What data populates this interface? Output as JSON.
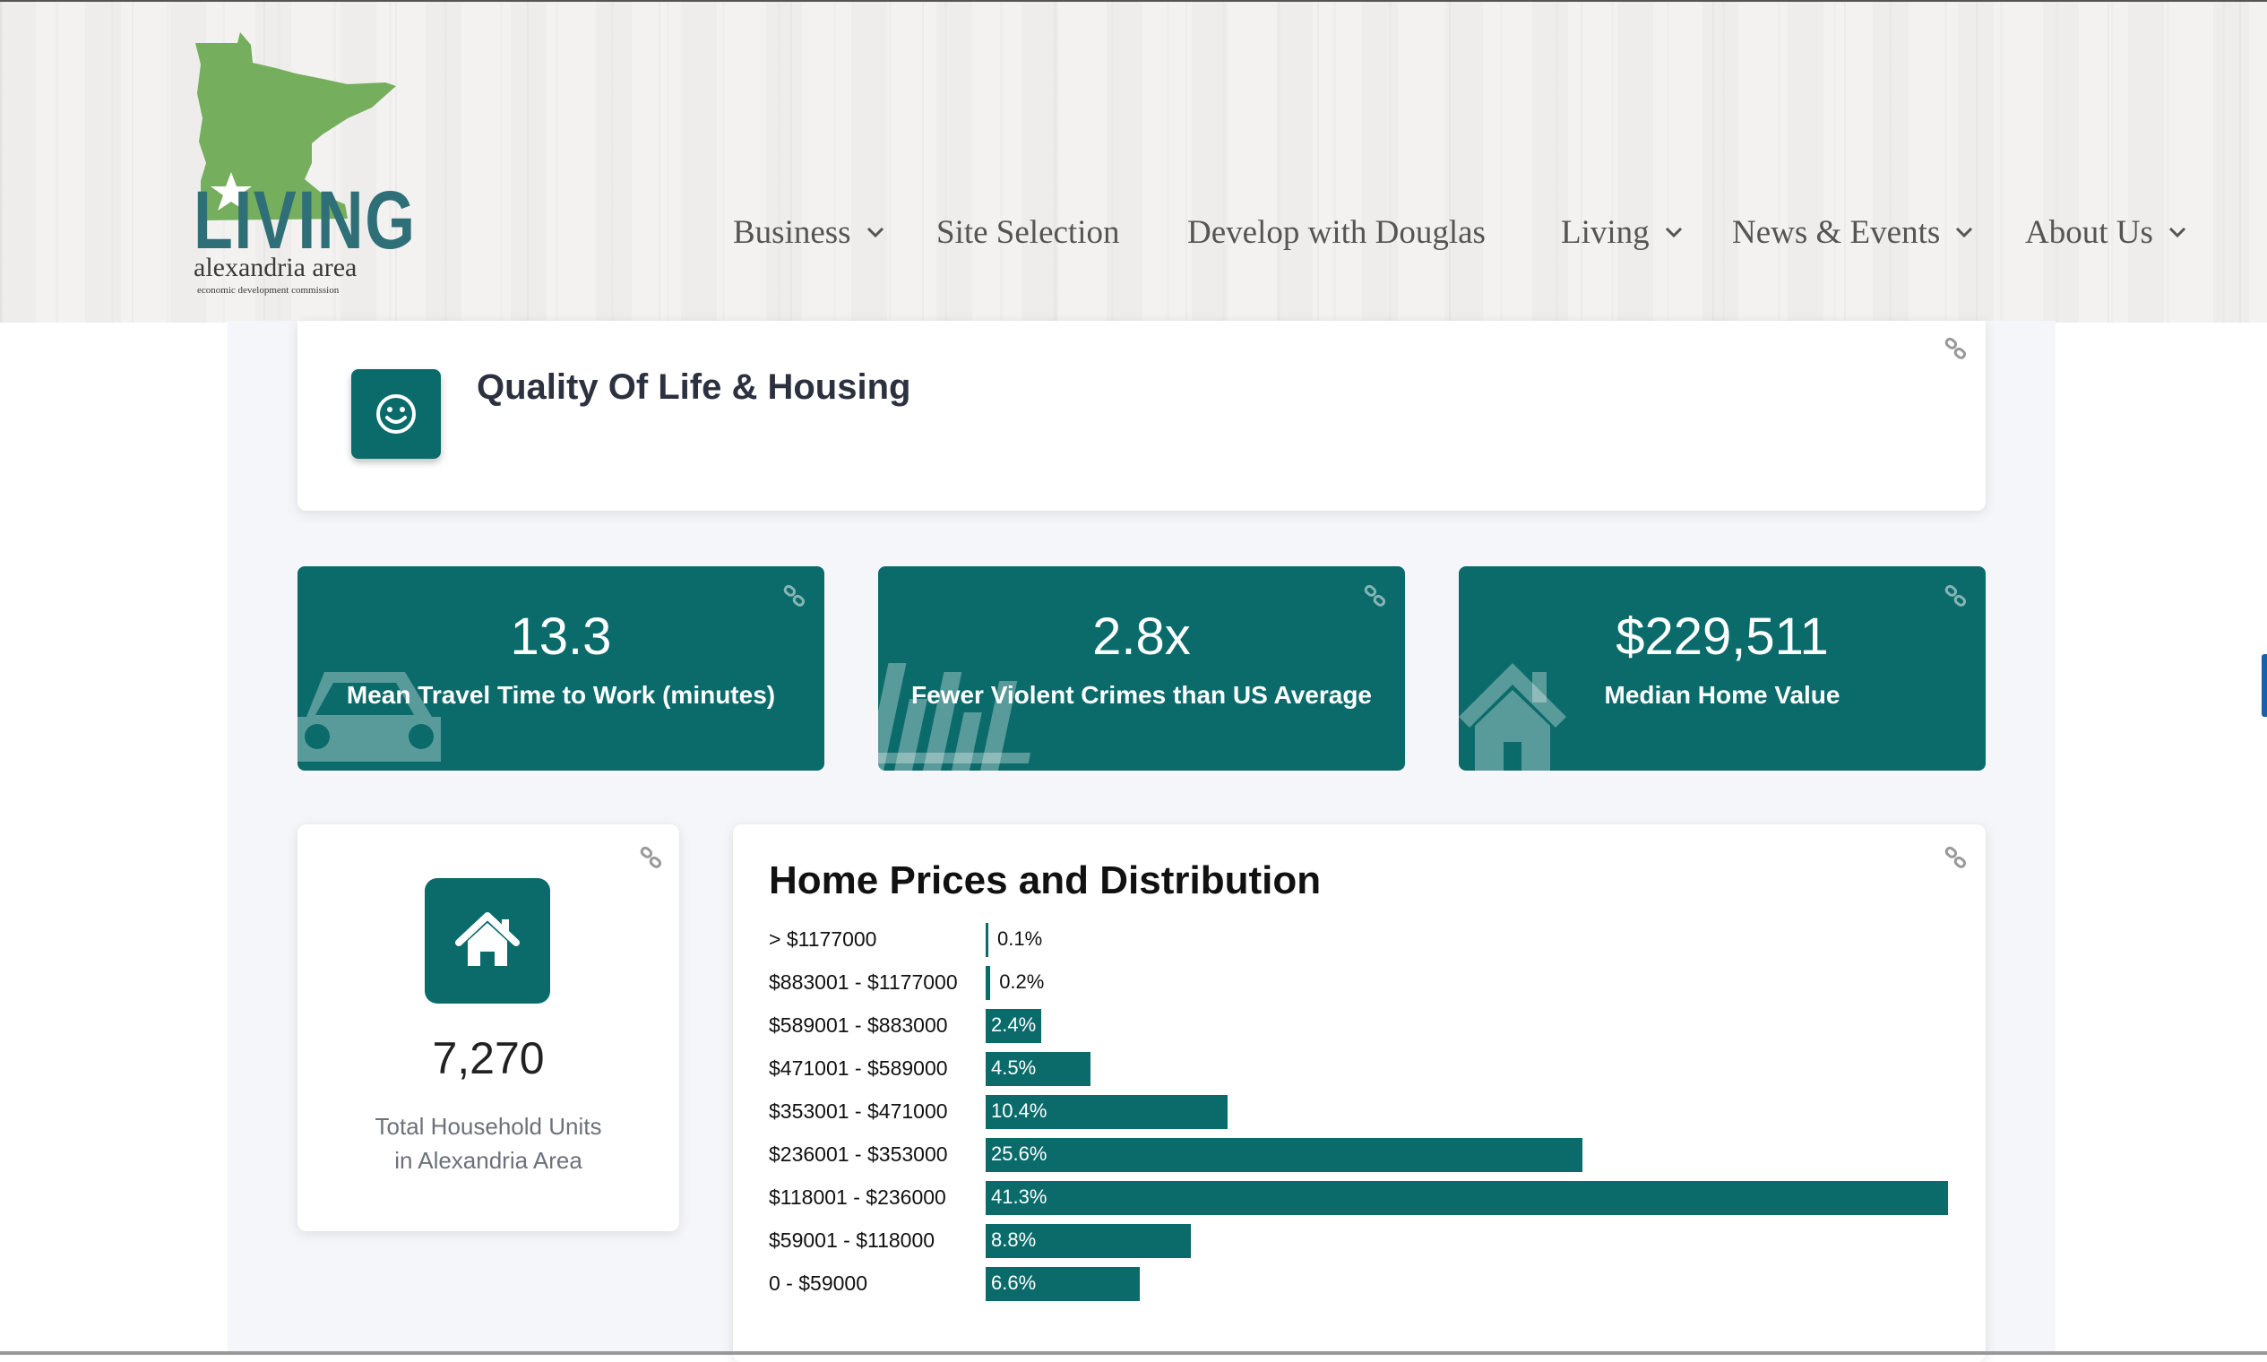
{
  "logo": {
    "word": "LIVING",
    "subtitle": "alexandria area",
    "tagline": "economic development commission"
  },
  "nav": [
    {
      "label": "Business",
      "dropdown": true
    },
    {
      "label": "Site Selection",
      "dropdown": false
    },
    {
      "label": "Develop with Douglas",
      "dropdown": false
    },
    {
      "label": "Living",
      "dropdown": true
    },
    {
      "label": "News & Events",
      "dropdown": true
    },
    {
      "label": "About Us",
      "dropdown": true
    }
  ],
  "section": {
    "title": "Quality Of Life & Housing",
    "icon": "smiley-icon"
  },
  "stats": [
    {
      "value": "13.3",
      "label": "Mean Travel Time to Work (minutes)",
      "icon": "car-icon"
    },
    {
      "value": "2.8x",
      "label": "Fewer Violent Crimes than US Average",
      "icon": "bar-chart-icon"
    },
    {
      "value": "$229,511",
      "label": "Median Home Value",
      "icon": "house-icon"
    }
  ],
  "households": {
    "value": "7,270",
    "label_line1": "Total Household Units",
    "label_line2": "in Alexandria Area",
    "icon": "home-icon"
  },
  "chart_data": {
    "type": "bar",
    "orientation": "horizontal",
    "title": "Home Prices and Distribution",
    "categories": [
      "> $1177000",
      "$883001 - $1177000",
      "$589001 - $883000",
      "$471001 - $589000",
      "$353001 - $471000",
      "$236001 - $353000",
      "$118001 - $236000",
      "$59001 - $118000",
      "0 - $59000"
    ],
    "values": [
      0.1,
      0.2,
      2.4,
      4.5,
      10.4,
      25.6,
      41.3,
      8.8,
      6.6
    ],
    "labels": [
      "0.1%",
      "0.2%",
      "2.4%",
      "4.5%",
      "10.4%",
      "25.6%",
      "41.3%",
      "8.8%",
      "6.6%"
    ],
    "xlabel": "",
    "ylabel": "",
    "xlim": [
      0,
      41.3
    ],
    "color": "#0b6b6b"
  },
  "colors": {
    "accent": "#0b6b6b",
    "nav_text": "#555555",
    "logo_green": "#6aa84f",
    "logo_teal": "#2f6f78"
  }
}
